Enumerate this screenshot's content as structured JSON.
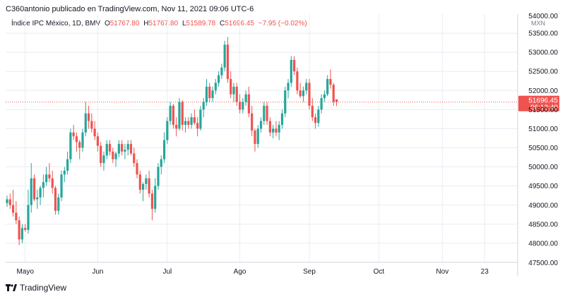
{
  "header": {
    "publish_line": "C360antonio publicado en TradingView.com, Nov 11, 2021 09:06 UTC-6"
  },
  "legend": {
    "symbol": "Índice IPC México, 1D, BMV",
    "open_label": "O",
    "open_value": "51767.80",
    "high_label": "H",
    "high_value": "51767.80",
    "low_label": "L",
    "low_value": "51589.78",
    "close_label": "C",
    "close_value": "51696.45",
    "change": "−7.95 (−0.02%)"
  },
  "currency": "MXN",
  "last_price": {
    "value": "51696.45",
    "countdown": "06:13:40"
  },
  "footer": {
    "brand": "TradingView"
  },
  "colors": {
    "up": "#26a69a",
    "down": "#ef5350",
    "grid": "#e8edf3",
    "axis_text": "#131722"
  },
  "chart_data": {
    "type": "candlestick",
    "ylim": [
      47500,
      54000
    ],
    "y_ticks": [
      48000,
      48500,
      49000,
      49500,
      50000,
      50500,
      51000,
      51500,
      52000,
      52500,
      53000,
      53500
    ],
    "y_tick_labels": [
      "48000.00",
      "48500.00",
      "49000.00",
      "49500.00",
      "50000.00",
      "50500.00",
      "51000.00",
      "51500.00",
      "52000.00",
      "52500.00",
      "53000.00",
      "53500.00"
    ],
    "y_top_label": "54000.00",
    "y_bottom_label": "47500.00",
    "x_labels": [
      "Mayo",
      "Jun",
      "Jul",
      "Ago",
      "Sep",
      "Oct",
      "Nov",
      "23"
    ],
    "x_label_index": [
      6,
      30,
      53,
      77,
      100,
      123,
      144,
      158
    ],
    "last_close": 51696.45,
    "candles": [
      [
        49050,
        49250,
        48950,
        49150
      ],
      [
        49150,
        49300,
        48900,
        49000
      ],
      [
        49000,
        49400,
        48700,
        48800
      ],
      [
        48800,
        49100,
        48500,
        48600
      ],
      [
        48600,
        48700,
        47950,
        48100
      ],
      [
        48100,
        48500,
        48000,
        48400
      ],
      [
        48400,
        48500,
        48300,
        48350
      ],
      [
        48350,
        49400,
        48250,
        49000
      ],
      [
        49000,
        50100,
        48800,
        49700
      ],
      [
        49700,
        49800,
        49100,
        49150
      ],
      [
        49150,
        49400,
        48900,
        49200
      ],
      [
        49200,
        49500,
        49000,
        49450
      ],
      [
        49450,
        49800,
        49200,
        49600
      ],
      [
        49600,
        50000,
        49500,
        49800
      ],
      [
        49800,
        50100,
        49600,
        49700
      ],
      [
        49700,
        49900,
        49300,
        49450
      ],
      [
        49450,
        49500,
        48750,
        48850
      ],
      [
        48850,
        49300,
        48750,
        49200
      ],
      [
        49200,
        49900,
        49100,
        49800
      ],
      [
        49800,
        50000,
        49600,
        49900
      ],
      [
        49900,
        50400,
        49800,
        50200
      ],
      [
        50200,
        51000,
        50100,
        50900
      ],
      [
        50900,
        51100,
        50700,
        50800
      ],
      [
        50800,
        50900,
        50400,
        50650
      ],
      [
        50650,
        50700,
        50200,
        50500
      ],
      [
        50500,
        51000,
        50400,
        50900
      ],
      [
        50900,
        51700,
        50800,
        51400
      ],
      [
        51400,
        51600,
        51000,
        51200
      ],
      [
        51200,
        51400,
        50900,
        51000
      ],
      [
        51000,
        51200,
        50700,
        50800
      ],
      [
        50800,
        50900,
        50400,
        50550
      ],
      [
        50550,
        50650,
        50000,
        50100
      ],
      [
        50100,
        50400,
        49900,
        50300
      ],
      [
        50300,
        50700,
        50200,
        50600
      ],
      [
        50600,
        50700,
        50300,
        50400
      ],
      [
        50400,
        50500,
        50100,
        50200
      ],
      [
        50200,
        50400,
        50000,
        50350
      ],
      [
        50350,
        50700,
        50250,
        50600
      ],
      [
        50600,
        50700,
        50300,
        50400
      ],
      [
        50400,
        50600,
        50200,
        50450
      ],
      [
        50450,
        50700,
        50300,
        50600
      ],
      [
        50600,
        50700,
        50300,
        50350
      ],
      [
        50350,
        50500,
        50000,
        50100
      ],
      [
        50100,
        50200,
        49700,
        49800
      ],
      [
        49800,
        49900,
        49300,
        49400
      ],
      [
        49400,
        49600,
        49100,
        49550
      ],
      [
        49550,
        49800,
        49400,
        49700
      ],
      [
        49700,
        49900,
        49200,
        49300
      ],
      [
        49300,
        49400,
        48600,
        48900
      ],
      [
        48900,
        49700,
        48800,
        49500
      ],
      [
        49500,
        50100,
        49400,
        50000
      ],
      [
        50000,
        50300,
        49800,
        50200
      ],
      [
        50200,
        50900,
        50100,
        50700
      ],
      [
        50700,
        51300,
        50600,
        51200
      ],
      [
        51200,
        51700,
        51100,
        51600
      ],
      [
        51600,
        51650,
        51000,
        51100
      ],
      [
        51100,
        51300,
        50800,
        51000
      ],
      [
        51000,
        51800,
        50950,
        51700
      ],
      [
        51700,
        51750,
        50950,
        51100
      ],
      [
        51100,
        51300,
        50900,
        51200
      ],
      [
        51200,
        51300,
        51000,
        51100
      ],
      [
        51100,
        51400,
        51000,
        51300
      ],
      [
        51300,
        51500,
        51100,
        51150
      ],
      [
        51150,
        51300,
        50800,
        51000
      ],
      [
        51000,
        51600,
        50950,
        51500
      ],
      [
        51500,
        51800,
        51300,
        51700
      ],
      [
        51700,
        52300,
        51600,
        52100
      ],
      [
        52100,
        52200,
        51700,
        51800
      ],
      [
        51800,
        52100,
        51700,
        52000
      ],
      [
        52000,
        52300,
        51900,
        52200
      ],
      [
        52200,
        52500,
        52100,
        52400
      ],
      [
        52400,
        52700,
        52300,
        52600
      ],
      [
        52600,
        53300,
        52500,
        53200
      ],
      [
        53200,
        53400,
        52200,
        52300
      ],
      [
        52300,
        52500,
        51800,
        51900
      ],
      [
        51900,
        52200,
        51700,
        52100
      ],
      [
        52100,
        52200,
        51600,
        51700
      ],
      [
        51700,
        51900,
        51400,
        51500
      ],
      [
        51500,
        51800,
        51400,
        51700
      ],
      [
        51700,
        52000,
        51600,
        51900
      ],
      [
        51900,
        52100,
        51300,
        51400
      ],
      [
        51400,
        51600,
        50800,
        50950
      ],
      [
        50950,
        51000,
        50400,
        50600
      ],
      [
        50600,
        51100,
        50500,
        51000
      ],
      [
        51000,
        51300,
        50900,
        51200
      ],
      [
        51200,
        51700,
        51100,
        51600
      ],
      [
        51600,
        51700,
        51100,
        51200
      ],
      [
        51200,
        51300,
        50800,
        50900
      ],
      [
        50900,
        51100,
        50750,
        51000
      ],
      [
        51000,
        51200,
        50800,
        50900
      ],
      [
        50900,
        51200,
        50700,
        51100
      ],
      [
        51100,
        51500,
        51000,
        51400
      ],
      [
        51400,
        52100,
        51300,
        52000
      ],
      [
        52000,
        52300,
        51800,
        52200
      ],
      [
        52200,
        52900,
        52100,
        52800
      ],
      [
        52800,
        52900,
        52400,
        52500
      ],
      [
        52500,
        52600,
        51900,
        52000
      ],
      [
        52000,
        52200,
        51800,
        51850
      ],
      [
        51850,
        52100,
        51700,
        52000
      ],
      [
        52000,
        52300,
        51900,
        52200
      ],
      [
        52200,
        52300,
        51500,
        51600
      ],
      [
        51600,
        51800,
        51200,
        51300
      ],
      [
        51300,
        51400,
        51000,
        51150
      ],
      [
        51150,
        51600,
        51050,
        51500
      ],
      [
        51500,
        51900,
        51400,
        51800
      ],
      [
        51800,
        52000,
        51700,
        51900
      ],
      [
        51900,
        52400,
        51850,
        52300
      ],
      [
        52300,
        52550,
        52050,
        52150
      ],
      [
        52150,
        52200,
        51600,
        51700
      ],
      [
        51767.8,
        51767.8,
        51589.78,
        51696.45
      ]
    ]
  }
}
